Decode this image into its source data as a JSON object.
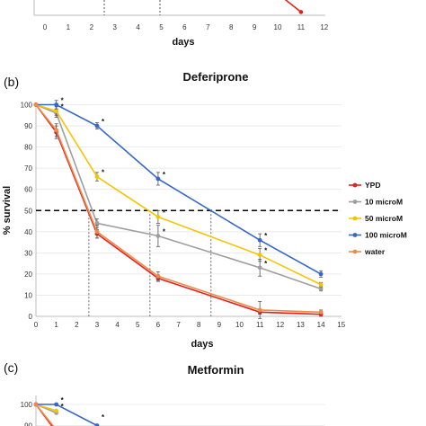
{
  "top_panel": {
    "xlabel": "days",
    "x_ticks": [
      "0",
      "1",
      "2",
      "3",
      "4",
      "5",
      "6",
      "7",
      "8",
      "9",
      "10",
      "11",
      "12"
    ],
    "series": [
      {
        "name": "",
        "color": "#e0241b",
        "x": [
          10.3,
          11
        ],
        "y": [
          5,
          1
        ]
      }
    ]
  },
  "chart_data": [
    {
      "type": "line",
      "panel_label": "(b)",
      "title": "Deferiprone",
      "xlabel": "days",
      "ylabel": "% survival",
      "xlim": [
        0,
        15
      ],
      "ylim": [
        0,
        100
      ],
      "x_ticks": [
        "0",
        "1",
        "2",
        "3",
        "4",
        "5",
        "6",
        "7",
        "8",
        "9",
        "10",
        "11",
        "12",
        "13",
        "14",
        "15"
      ],
      "y_ticks": [
        "0",
        "10",
        "20",
        "30",
        "40",
        "50",
        "60",
        "70",
        "80",
        "90",
        "100"
      ],
      "threshold": 50,
      "vlines": [
        2.6,
        5.6,
        8.6
      ],
      "legend_position": "right",
      "series": [
        {
          "name": "YPD",
          "color": "#e0241b",
          "x": [
            0,
            1,
            3,
            6,
            11,
            14
          ],
          "y": [
            100,
            87,
            39,
            18,
            2,
            1
          ],
          "err": [
            0,
            3,
            2,
            1.5,
            1,
            1
          ]
        },
        {
          "name": "10 microM",
          "color": "#9e9e9e",
          "x": [
            0,
            1,
            3,
            6,
            11,
            14
          ],
          "y": [
            100,
            96,
            44,
            38,
            23,
            13
          ],
          "err": [
            0,
            2,
            2,
            5,
            4,
            1
          ]
        },
        {
          "name": "50 microM",
          "color": "#f5c400",
          "x": [
            0,
            1,
            3,
            6,
            11,
            14
          ],
          "y": [
            100,
            97,
            66,
            47,
            29,
            15
          ],
          "err": [
            0,
            2,
            2,
            3,
            3,
            1
          ]
        },
        {
          "name": "100 microM",
          "color": "#3567c9",
          "x": [
            0,
            1,
            3,
            6,
            11,
            14
          ],
          "y": [
            100,
            100,
            90,
            65,
            36,
            20
          ],
          "err": [
            0,
            2,
            1.5,
            3,
            3,
            1.5
          ]
        },
        {
          "name": "water",
          "color": "#f08a4b",
          "x": [
            0,
            1,
            3,
            6,
            11,
            14
          ],
          "y": [
            100,
            88,
            40,
            19,
            3,
            2
          ],
          "err": [
            0,
            3,
            3,
            2,
            4,
            1
          ]
        }
      ],
      "significance": [
        {
          "x": 1,
          "y": 100,
          "label": "*"
        },
        {
          "x": 1,
          "y": 97,
          "label": "*"
        },
        {
          "x": 3,
          "y": 90,
          "label": "*"
        },
        {
          "x": 3,
          "y": 66,
          "label": "*"
        },
        {
          "x": 6,
          "y": 65,
          "label": "*"
        },
        {
          "x": 6,
          "y": 47,
          "label": "*"
        },
        {
          "x": 6,
          "y": 38,
          "label": "*"
        },
        {
          "x": 11,
          "y": 36,
          "label": "*"
        },
        {
          "x": 11,
          "y": 29,
          "label": "*"
        },
        {
          "x": 11,
          "y": 23,
          "label": "*"
        }
      ]
    },
    {
      "type": "line",
      "panel_label": "(c)",
      "title": "Metformin",
      "y_ticks": [
        "90",
        "100"
      ],
      "series": [
        {
          "name": "YPD",
          "color": "#e0241b",
          "x": [
            0,
            1
          ],
          "y": [
            100,
            87
          ]
        },
        {
          "name": "10 microM",
          "color": "#9e9e9e",
          "x": [
            0,
            1
          ],
          "y": [
            100,
            96
          ]
        },
        {
          "name": "50 microM",
          "color": "#f5c400",
          "x": [
            0,
            1
          ],
          "y": [
            100,
            97
          ]
        },
        {
          "name": "100 microM",
          "color": "#3567c9",
          "x": [
            0,
            1,
            3
          ],
          "y": [
            100,
            100,
            90
          ]
        },
        {
          "name": "water",
          "color": "#f08a4b",
          "x": [
            0,
            1
          ],
          "y": [
            100,
            88
          ]
        }
      ],
      "significance": [
        {
          "x": 1,
          "y": 100,
          "label": "*"
        },
        {
          "x": 1,
          "y": 97,
          "label": "*"
        },
        {
          "x": 3,
          "y": 92,
          "label": "*"
        }
      ]
    }
  ]
}
